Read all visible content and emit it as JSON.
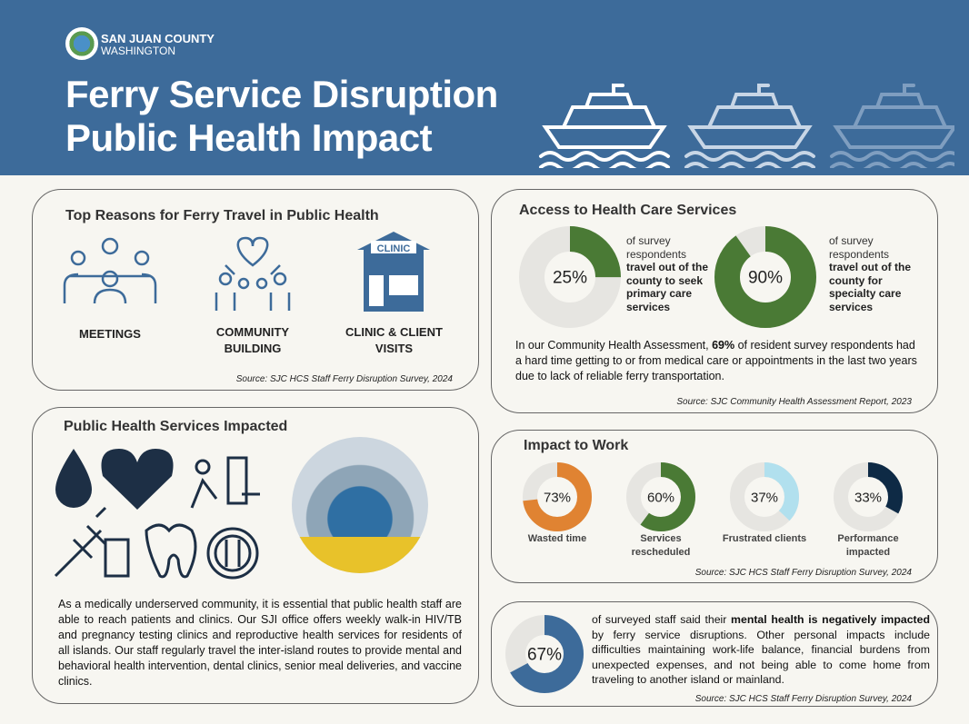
{
  "header": {
    "org_name": "SAN JUAN COUNTY",
    "org_state": "WASHINGTON",
    "title_line1": "Ferry Service Disruption",
    "title_line2": "Public Health Impact",
    "color": "#3d6b9a"
  },
  "reasons": {
    "title": "Top Reasons for Ferry Travel in Public Health",
    "items": [
      {
        "label": "MEETINGS",
        "icon": "meeting-icon"
      },
      {
        "label": "COMMUNITY BUILDING",
        "icon": "community-heart-icon"
      },
      {
        "label": "CLINIC & CLIENT VISITS",
        "icon": "clinic-building-icon",
        "sign": "CLINIC"
      }
    ],
    "source": "Source: SJC HCS Staff Ferry Disruption Survey, 2024"
  },
  "access": {
    "title": "Access to Health Care Services",
    "donuts": [
      {
        "value": 25,
        "label": "25%",
        "color": "#4a7a35",
        "text_plain": "of survey respondents",
        "text_bold": "travel out of the county to seek primary care services"
      },
      {
        "value": 90,
        "label": "90%",
        "color": "#4a7a35",
        "text_plain": "of survey respondents",
        "text_bold": "travel out of the county for specialty care services"
      }
    ],
    "para_pre": "In our Community Health Assessment, ",
    "para_bold": "69%",
    "para_post": " of resident survey respondents had a hard time getting to or from medical care or appointments in the last two years due to lack of reliable ferry transportation.",
    "source": "Source: SJC Community Health Assessment Report, 2023"
  },
  "services": {
    "title": "Public Health Services Impacted",
    "icons": [
      "blood-drop-test-icon",
      "heart-brain-icon",
      "person-pills-icon",
      "syringe-vial-icon",
      "tooth-icon",
      "plate-utensils-icon"
    ],
    "photo": "ferry-van-photo",
    "para": "As a medically underserved community, it is essential that public health staff are able to reach patients and clinics. Our SJI office offers weekly walk-in HIV/TB and pregnancy testing clinics and reproductive health services for residents of all islands. Our staff regularly travel the inter-island routes to provide mental and behavioral health intervention, dental clinics, senior meal deliveries, and vaccine clinics."
  },
  "work": {
    "title": "Impact to Work",
    "donuts": [
      {
        "value": 73,
        "label": "73%",
        "name": "Wasted time",
        "color": "#e08332"
      },
      {
        "value": 60,
        "label": "60%",
        "name": "Services rescheduled",
        "color": "#4a7a35"
      },
      {
        "value": 37,
        "label": "37%",
        "name": "Frustrated clients",
        "color": "#b1e0ee"
      },
      {
        "value": 33,
        "label": "33%",
        "name": "Performance impacted",
        "color": "#0e2a45"
      }
    ],
    "source": "Source: SJC HCS Staff Ferry Disruption Survey, 2024"
  },
  "mental": {
    "value": 67,
    "label": "67%",
    "color": "#3d6b9a",
    "text_pre": "of surveyed staff said their ",
    "text_bold": "mental health is negatively impacted",
    "text_post": " by ferry service disruptions. Other personal impacts include difficulties maintaining work-life balance, financial burdens from unexpected expenses, and not being able to come home from traveling to another island or mainland.",
    "source": "Source: SJC HCS Staff Ferry Disruption Survey, 2024"
  },
  "track_color": "#e6e5e1"
}
